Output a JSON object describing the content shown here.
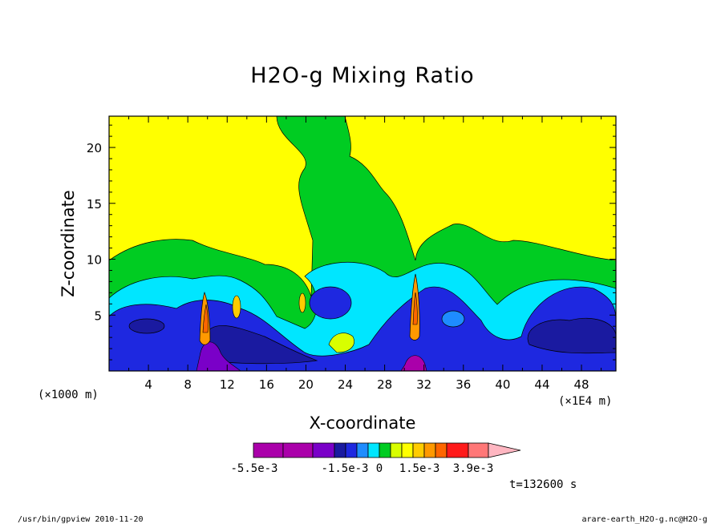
{
  "chart_data": {
    "type": "heatmap",
    "title": "H2O-g Mixing Ratio",
    "xlabel": "X-coordinate",
    "ylabel": "Z-coordinate",
    "x_unit": "(×1000 m)",
    "x_unit_right": "(×1E4 m)",
    "xlim": [
      0,
      51.5
    ],
    "ylim": [
      0,
      22.8
    ],
    "x_ticks": [
      4,
      8,
      12,
      16,
      20,
      24,
      28,
      32,
      36,
      40,
      44,
      48
    ],
    "y_ticks": [
      5,
      10,
      15,
      20
    ],
    "time_label": "t=132600 s",
    "colorbar": {
      "colors": [
        "#aa00aa",
        "#aa00aa",
        "#7a00c8",
        "#1a1aa0",
        "#1e28e0",
        "#1e8cff",
        "#00e6ff",
        "#00cc22",
        "#d8ff00",
        "#ffff00",
        "#ffcc00",
        "#ff9900",
        "#ff6600",
        "#ff1a1a",
        "#ff7777",
        "#ffb6c1"
      ],
      "tick_labels": [
        "-5.5e-3",
        "-1.5e-3",
        "0",
        "1.5e-3",
        "3.9e-3"
      ]
    }
  },
  "footer": {
    "left": "/usr/bin/gpview  2010-11-20",
    "right": "arare-earth_H2O-g.nc@H2O-g"
  }
}
